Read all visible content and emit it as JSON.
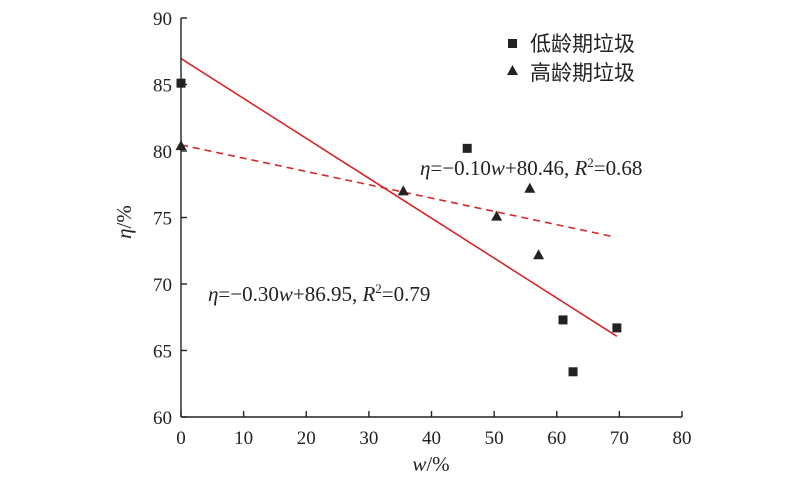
{
  "chart_data": {
    "type": "scatter",
    "x_axis": {
      "label_var": "w",
      "label_unit": "/%",
      "range": [
        0,
        80
      ],
      "ticks": [
        0,
        10,
        20,
        30,
        40,
        50,
        60,
        70,
        80
      ]
    },
    "y_axis": {
      "label_var": "η",
      "label_unit": "/%",
      "range": [
        60,
        90
      ],
      "ticks": [
        60,
        65,
        70,
        75,
        80,
        85,
        90
      ]
    },
    "grid": false,
    "legend_position": "top-right",
    "series": [
      {
        "name": "低龄期垃圾",
        "marker": "square",
        "points": [
          [
            0,
            85.1
          ],
          [
            45.7,
            80.2
          ],
          [
            61,
            67.3
          ],
          [
            62.6,
            63.4
          ],
          [
            69.6,
            66.7
          ]
        ],
        "fit": {
          "line_style": "solid",
          "color": "#d62728",
          "x_range": [
            0,
            69.6
          ],
          "slope": -0.3,
          "intercept": 86.95,
          "equation": {
            "var": "η",
            "rhs": "=−0.30",
            "w": "w",
            "rest": "+86.95, ",
            "r": "R",
            "sup": "2",
            "r2": "=0.79"
          }
        }
      },
      {
        "name": "高龄期垃圾",
        "marker": "triangle",
        "points": [
          [
            0,
            80.4
          ],
          [
            35.5,
            77
          ],
          [
            50.4,
            75.1
          ],
          [
            55.7,
            77.2
          ],
          [
            57.1,
            72.2
          ]
        ],
        "fit": {
          "line_style": "dashed",
          "color": "#d62728",
          "x_range": [
            0,
            68.8
          ],
          "slope": -0.1,
          "intercept": 80.46,
          "equation": {
            "var": "η",
            "rhs": "=−0.10",
            "w": "w",
            "rest": "+80.46, ",
            "r": "R",
            "sup": "2",
            "r2": "=0.68"
          }
        }
      }
    ]
  }
}
